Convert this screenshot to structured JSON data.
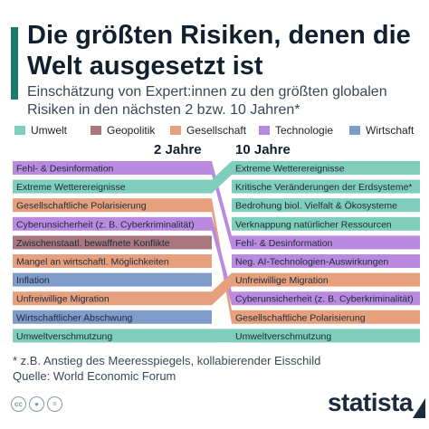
{
  "header": {
    "title": "Die größten Risiken, denen die Welt ausgesetzt ist",
    "subtitle": "Einschätzung von Expert:innen zu den größten globalen Risiken in den nächsten 2 bzw. 10 Jahren*"
  },
  "legend": [
    {
      "label": "Umwelt",
      "color": "#7fcdbb"
    },
    {
      "label": "Geopolitik",
      "color": "#a9787e"
    },
    {
      "label": "Gesellschaft",
      "color": "#e7a07e"
    },
    {
      "label": "Technologie",
      "color": "#b98ae0"
    },
    {
      "label": "Wirtschaft",
      "color": "#7f9bc9"
    }
  ],
  "columns": {
    "left": "2 Jahre",
    "right": "10 Jahre"
  },
  "chart_data": {
    "type": "table",
    "description": "Rankings of global risks: 2-year vs 10-year horizon",
    "left_2_jahre": [
      {
        "rank": 1,
        "label": "Fehl- & Desinformation",
        "category": "Technologie"
      },
      {
        "rank": 2,
        "label": "Extreme Wetterereignisse",
        "category": "Umwelt"
      },
      {
        "rank": 3,
        "label": "Gesellschaftliche Polarisierung",
        "category": "Gesellschaft"
      },
      {
        "rank": 4,
        "label": "Cyberunsicherheit (z. B. Cyberkriminalität)",
        "category": "Technologie"
      },
      {
        "rank": 5,
        "label": "Zwischenstaatl. bewaffnete Konflikte",
        "category": "Geopolitik"
      },
      {
        "rank": 6,
        "label": "Mangel an wirtschaftl. Möglichkeiten",
        "category": "Gesellschaft"
      },
      {
        "rank": 7,
        "label": "Inflation",
        "category": "Wirtschaft"
      },
      {
        "rank": 8,
        "label": "Unfreiwillige Migration",
        "category": "Gesellschaft"
      },
      {
        "rank": 9,
        "label": "Wirtschaftlicher Abschwung",
        "category": "Wirtschaft"
      },
      {
        "rank": 10,
        "label": "Umweltverschmutzung",
        "category": "Umwelt"
      }
    ],
    "right_10_jahre": [
      {
        "rank": 1,
        "label": "Extreme Wetterereignisse",
        "category": "Umwelt"
      },
      {
        "rank": 2,
        "label": "Kritische Veränderungen der Erdsysteme*",
        "category": "Umwelt"
      },
      {
        "rank": 3,
        "label": "Bedrohung biol. Vielfalt & Ökosysteme",
        "category": "Umwelt"
      },
      {
        "rank": 4,
        "label": "Verknappung natürlicher Ressourcen",
        "category": "Umwelt"
      },
      {
        "rank": 5,
        "label": "Fehl- & Desinformation",
        "category": "Technologie"
      },
      {
        "rank": 6,
        "label": "Neg. AI-Technologien-Auswirkungen",
        "category": "Technologie"
      },
      {
        "rank": 7,
        "label": "Unfreiwillige Migration",
        "category": "Gesellschaft"
      },
      {
        "rank": 8,
        "label": "Cyberunsicherheit (z. B. Cyberkriminalität)",
        "category": "Technologie"
      },
      {
        "rank": 9,
        "label": "Gesellschaftliche Polarisierung",
        "category": "Gesellschaft"
      },
      {
        "rank": 10,
        "label": "Umweltverschmutzung",
        "category": "Umwelt"
      }
    ]
  },
  "footnote": {
    "line1": "* z.B. Anstieg des Meeresspiegels, kollabierender Eisschild",
    "line2": "Quelle: World Economic Forum"
  },
  "footer": {
    "brand": "statista",
    "cc_icons": [
      "cc-icon",
      "person-icon",
      "equals-icon"
    ]
  }
}
